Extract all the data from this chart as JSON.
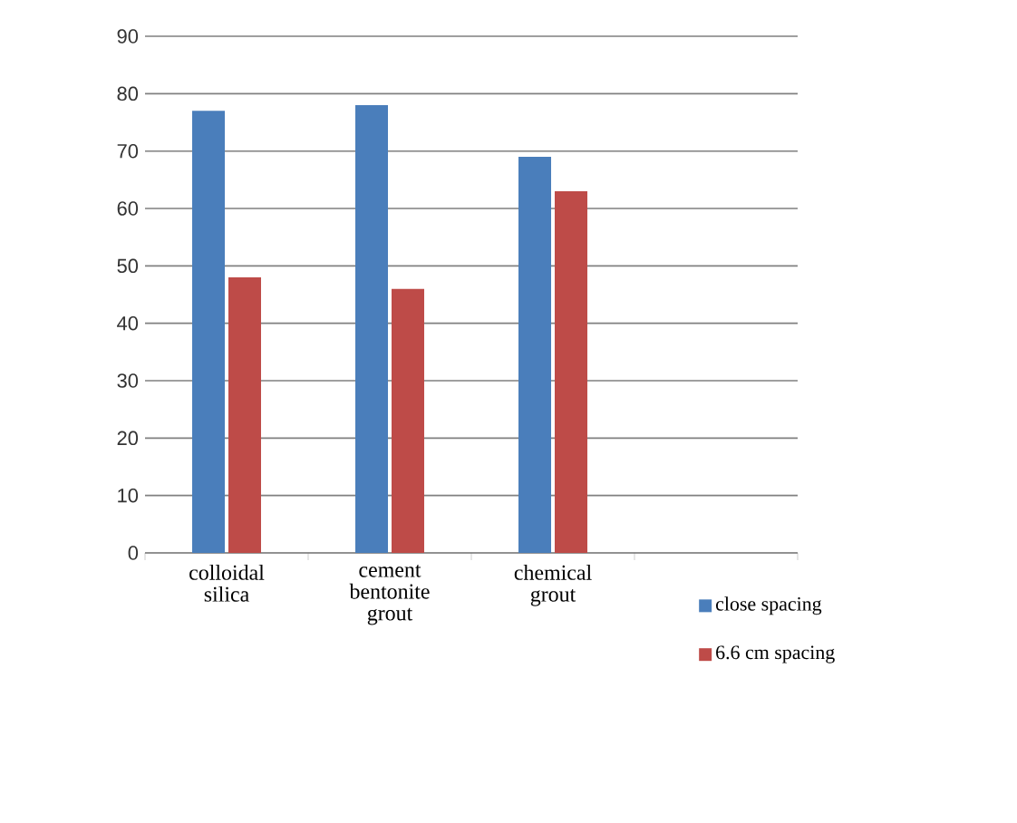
{
  "chart_data": {
    "type": "bar",
    "categories": [
      "colloidal silica",
      "cement bentonite grout",
      "chemical grout",
      null
    ],
    "series": [
      {
        "name": "close spacing",
        "color": "#4a7ebb",
        "values": [
          77,
          78,
          69,
          null
        ]
      },
      {
        "name": "6.6 cm spacing",
        "color": "#be4b48",
        "values": [
          48,
          46,
          63,
          null
        ]
      }
    ],
    "ylim": [
      0,
      90
    ],
    "yticks": [
      0,
      10,
      20,
      30,
      40,
      50,
      60,
      70,
      80,
      90
    ],
    "grid": "y",
    "legend": "bottom right"
  }
}
